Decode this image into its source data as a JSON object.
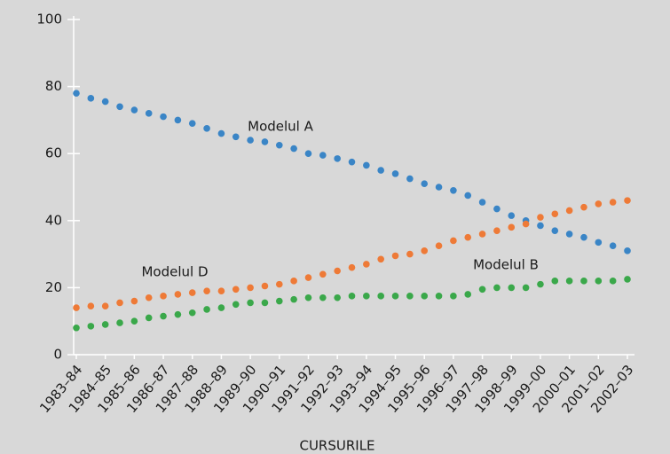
{
  "chart_data": {
    "type": "dot-line",
    "x_label": "CURSURILE",
    "categories": [
      "1983–84",
      null,
      "1984–85",
      null,
      "1985–86",
      null,
      "1986–87",
      null,
      "1987–88",
      null,
      "1988–89",
      null,
      "1989–90",
      null,
      "1990–91",
      null,
      "1991–92",
      null,
      "1992–93",
      null,
      "1993–94",
      null,
      "1994–95",
      null,
      "1995–96",
      null,
      "1996–97",
      null,
      "1997–98",
      null,
      "1998–99",
      null,
      "1999–00",
      null,
      "2000–01",
      null,
      "2001–02",
      null,
      "2002–03"
    ],
    "series": [
      {
        "name": "Modelul A",
        "color": "#3a85c6",
        "values": [
          78,
          76.5,
          75.5,
          74,
          73,
          72,
          71,
          70,
          69,
          67.5,
          66,
          65,
          64,
          63.5,
          62.5,
          61.5,
          60,
          59.5,
          58.5,
          57.5,
          56.5,
          55,
          54,
          52.5,
          51,
          50,
          49,
          47.5,
          45.5,
          43.5,
          41.5,
          40,
          38.5,
          37,
          36,
          35,
          33.5,
          32.5,
          31
        ]
      },
      {
        "name": "Modelul D",
        "color": "#ee7a37",
        "values": [
          14,
          14.5,
          14.5,
          15.5,
          16,
          17,
          17.5,
          18,
          18.5,
          19,
          19,
          19.5,
          20,
          20.5,
          21,
          22,
          23,
          24,
          25,
          26,
          27,
          28.5,
          29.5,
          30,
          31,
          32.5,
          34,
          35,
          36,
          37,
          38,
          39,
          41,
          42,
          43,
          44,
          45,
          45.5,
          46
        ]
      },
      {
        "name": "Modelul B",
        "color": "#3aa84a",
        "values": [
          8,
          8.5,
          9,
          9.5,
          10,
          11,
          11.5,
          12,
          12.5,
          13.5,
          14,
          15,
          15.5,
          15.5,
          16,
          16.5,
          17,
          17,
          17,
          17.5,
          17.5,
          17.5,
          17.5,
          17.5,
          17.5,
          17.5,
          17.5,
          18,
          19.5,
          20,
          20,
          20,
          21,
          22,
          22,
          22,
          22,
          22,
          22.5
        ]
      }
    ],
    "ylim": [
      0,
      100
    ],
    "yticks": [
      0,
      20,
      40,
      60,
      80,
      100
    ],
    "grid": false
  }
}
